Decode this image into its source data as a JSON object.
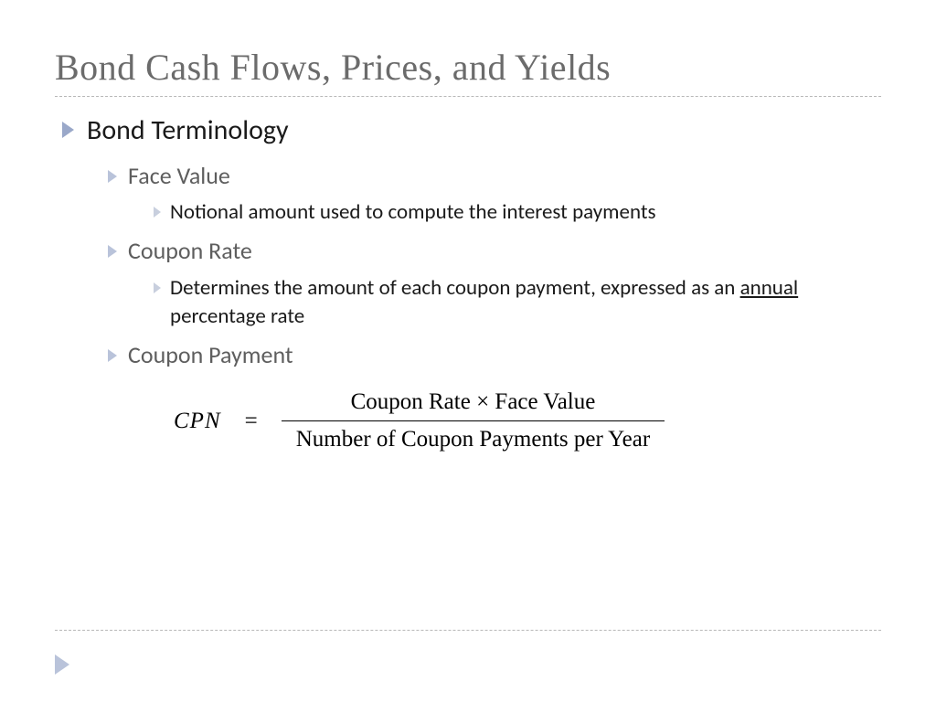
{
  "title": "Bond Cash Flows, Prices, and Yields",
  "heading": "Bond Terminology",
  "items": [
    {
      "term": "Face Value",
      "def_plain": "Notional amount used to compute the interest payments"
    },
    {
      "term": "Coupon Rate",
      "def_pre": "Determines the amount of each coupon payment, expressed as an ",
      "def_underlined": "annual",
      "def_post": " percentage rate"
    },
    {
      "term": "Coupon Payment"
    }
  ],
  "formula": {
    "lhs": "CPN",
    "eq": "=",
    "numerator": "Coupon Rate  ×  Face Value",
    "denominator": "Number of Coupon Payments per Year"
  },
  "colors": {
    "title_text": "#6b6b6b",
    "body_text": "#1a1a1a",
    "sub_text": "#5e5e5e",
    "bullet_l1": "#9aa8c9",
    "bullet_l2": "#b9c3da",
    "bullet_l3": "#c8cfde",
    "rule": "#b8b8b8",
    "background": "#ffffff"
  },
  "fonts": {
    "title_family": "Georgia serif",
    "body_family": "Gill Sans",
    "formula_family": "Times New Roman",
    "title_size_pt": 40,
    "l1_size_pt": 30,
    "l2_size_pt": 26,
    "l3_size_pt": 23,
    "formula_size_pt": 25
  }
}
